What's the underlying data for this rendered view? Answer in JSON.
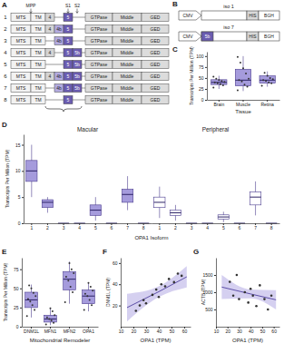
{
  "diagram_a": {
    "panel": "A",
    "labels": {
      "mpp": "MPP",
      "s1": "S1",
      "s2": "S2"
    },
    "rows": [
      {
        "number": "1",
        "left": [
          "MTS",
          "TM"
        ],
        "exons": [
          "4",
          null,
          "5",
          null
        ],
        "right": [
          "GTPase",
          "Middle",
          "GED"
        ]
      },
      {
        "number": "2",
        "left": [
          "MTS",
          "TM"
        ],
        "exons": [
          "4",
          "4b",
          "5",
          null
        ],
        "right": [
          "GTPase",
          "Middle",
          "GED"
        ]
      },
      {
        "number": "3",
        "left": [
          "MTS",
          "TM"
        ],
        "exons": [
          null,
          "4b",
          "5",
          null
        ],
        "right": [
          "GTPase",
          "Middle",
          "GED"
        ]
      },
      {
        "number": "4",
        "left": [
          "MTS",
          "TM"
        ],
        "exons": [
          "4",
          null,
          "5",
          "5b"
        ],
        "right": [
          "GTPase",
          "Middle",
          "GED"
        ]
      },
      {
        "number": "5",
        "left": [
          "MTS",
          "TM"
        ],
        "exons": [
          null,
          null,
          "5",
          "5b"
        ],
        "right": [
          "GTPase",
          "Middle",
          "GED"
        ]
      },
      {
        "number": "6",
        "left": [
          "MTS",
          "TM"
        ],
        "exons": [
          "4",
          "4b",
          "5",
          "5b"
        ],
        "right": [
          "GTPase",
          "Middle",
          "GED"
        ]
      },
      {
        "number": "7",
        "left": [
          "MTS",
          "TM"
        ],
        "exons": [
          null,
          "4b",
          "5",
          "5b"
        ],
        "right": [
          "GTPase",
          "Middle",
          "GED"
        ]
      },
      {
        "number": "8",
        "left": [
          "MTS",
          "TM"
        ],
        "exons": [
          null,
          null,
          "5",
          null
        ],
        "right": [
          "GTPase",
          "Middle",
          "GED"
        ]
      }
    ]
  },
  "diagram_b": {
    "panel": "B",
    "constructs": [
      {
        "name": "iso 1",
        "parts": [
          "CMV",
          null,
          "HIS",
          "BGH"
        ]
      },
      {
        "name": "iso 7",
        "parts": [
          "CMV",
          "5b",
          "HIS",
          "BGH"
        ]
      }
    ]
  },
  "chart_data": [
    {
      "panel": "C",
      "type": "box",
      "categories": [
        "Brain",
        "Muscle",
        "Retina"
      ],
      "x_label": "Tissue",
      "y_label": "Transcripts Per Million (TPM)",
      "ylim": [
        0,
        110
      ],
      "yticks": [
        0,
        25,
        50,
        75,
        100
      ],
      "series": [
        {
          "color": "#a59bdc",
          "min": [
            25,
            20,
            30
          ],
          "q1": [
            35,
            32,
            38
          ],
          "median": [
            40,
            45,
            45
          ],
          "q3": [
            46,
            70,
            55
          ],
          "max": [
            55,
            100,
            65
          ],
          "points": [
            [
              28,
              33,
              36,
              38,
              40,
              41,
              43,
              45,
              48,
              53
            ],
            [
              22,
              30,
              35,
              42,
              45,
              48,
              60,
              72,
              85,
              98
            ],
            [
              32,
              38,
              40,
              43,
              45,
              47,
              50,
              55,
              62
            ]
          ]
        }
      ]
    },
    {
      "panel": "D",
      "type": "box",
      "categories": [
        "1",
        "2",
        "3",
        "4",
        "5",
        "6",
        "7",
        "8"
      ],
      "x_label": "OPA1 Isoform",
      "y_label": "Transcripts Per Million (TPM)",
      "ylim": [
        0,
        17
      ],
      "yticks": [
        0,
        5,
        10,
        15
      ],
      "series": [
        {
          "name": "Macular",
          "color": "#a59bdc",
          "min": [
            5,
            2,
            0,
            0,
            0.5,
            0,
            2.5,
            0
          ],
          "q1": [
            8,
            3,
            0,
            0,
            1.5,
            0,
            4,
            0
          ],
          "median": [
            10,
            4,
            0,
            0,
            2.5,
            0,
            5.5,
            0
          ],
          "q3": [
            12,
            4.5,
            0,
            0,
            3.5,
            0,
            6.5,
            0
          ],
          "max": [
            15,
            5,
            0,
            0,
            5,
            0,
            9,
            0
          ]
        },
        {
          "name": "Peripheral",
          "color": "#ffffff",
          "min": [
            1,
            0.5,
            0,
            0,
            0.2,
            0,
            1.5,
            0
          ],
          "q1": [
            3,
            1.5,
            0,
            0,
            0.8,
            0,
            3.5,
            0
          ],
          "median": [
            4,
            2,
            0,
            0,
            1.2,
            0,
            5,
            0
          ],
          "q3": [
            5,
            2.5,
            0,
            0,
            1.6,
            0,
            6,
            0
          ],
          "max": [
            7,
            3.5,
            0,
            0,
            2.2,
            0,
            8,
            0
          ]
        }
      ]
    },
    {
      "panel": "E",
      "type": "box",
      "categories": [
        "DNM1L",
        "MFN1",
        "MFN2",
        "OPA1"
      ],
      "x_label": "Mitochondrial Remodeler",
      "y_label": "Transcripts Per Million (TPM)",
      "ylim": [
        0,
        90
      ],
      "yticks": [
        0,
        25,
        50,
        75
      ],
      "series": [
        {
          "color": "#a59bdc",
          "min": [
            12,
            2,
            30,
            20
          ],
          "q1": [
            25,
            6,
            48,
            30
          ],
          "median": [
            35,
            10,
            62,
            40
          ],
          "q3": [
            45,
            15,
            72,
            48
          ],
          "max": [
            55,
            25,
            85,
            58
          ],
          "points": [
            [
              14,
              22,
              28,
              33,
              36,
              40,
              44,
              50,
              54
            ],
            [
              3,
              5,
              8,
              10,
              12,
              15,
              20,
              24
            ],
            [
              32,
              45,
              52,
              60,
              65,
              70,
              75,
              83
            ],
            [
              22,
              28,
              35,
              40,
              43,
              47,
              52,
              57
            ]
          ]
        }
      ]
    },
    {
      "panel": "F",
      "type": "scatter",
      "x_label": "OPA1 (TPM)",
      "y_label": "DNM1L (TPM)",
      "xlim": [
        10,
        65
      ],
      "xticks": [
        10,
        20,
        30,
        40,
        50,
        60
      ],
      "ylim": [
        0,
        65
      ],
      "yticks": [
        20,
        40,
        60
      ],
      "x": [
        22,
        25,
        28,
        30,
        35,
        38,
        40,
        42,
        45,
        48,
        52,
        55,
        58
      ],
      "y": [
        15,
        20,
        25,
        22,
        30,
        35,
        28,
        40,
        38,
        45,
        42,
        50,
        48
      ],
      "fit": {
        "x": [
          15,
          40,
          62
        ],
        "y": [
          18,
          33,
          47
        ],
        "lower": [
          5,
          28,
          37
        ],
        "upper": [
          31,
          38,
          57
        ]
      }
    },
    {
      "panel": "G",
      "type": "scatter",
      "x_label": "OPA1 (TPM)",
      "y_label": "ACTB (TPM)",
      "xlim": [
        10,
        65
      ],
      "xticks": [
        10,
        20,
        30,
        40,
        50,
        60
      ],
      "ylim": [
        0,
        2000
      ],
      "yticks": [
        500,
        1000,
        1500
      ],
      "x": [
        22,
        25,
        28,
        30,
        35,
        38,
        40,
        42,
        45,
        48,
        52,
        55,
        58
      ],
      "y": [
        1300,
        900,
        1500,
        800,
        1000,
        700,
        1100,
        900,
        600,
        1200,
        800,
        500,
        900
      ],
      "fit": {
        "x": [
          15,
          40,
          62
        ],
        "y": [
          1150,
          950,
          780
        ],
        "lower": [
          800,
          820,
          500
        ],
        "upper": [
          1500,
          1080,
          1060
        ]
      }
    }
  ]
}
